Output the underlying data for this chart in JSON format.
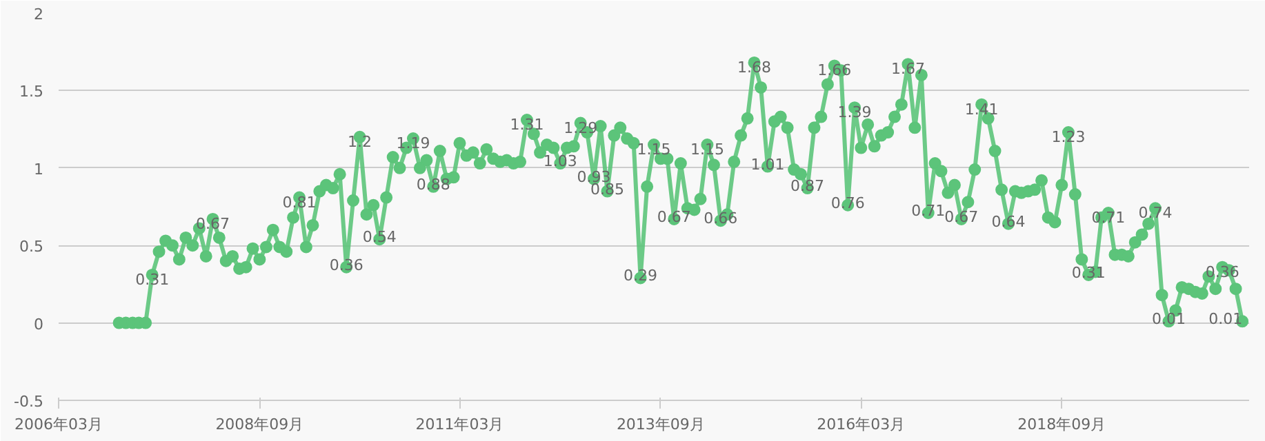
{
  "chart_data": {
    "type": "line",
    "x": [
      "2006-12",
      "2007-01",
      "2007-02",
      "2007-03",
      "2007-04",
      "2007-05",
      "2007-06",
      "2007-07",
      "2007-08",
      "2007-09",
      "2007-10",
      "2007-11",
      "2007-12",
      "2008-01",
      "2008-02",
      "2008-03",
      "2008-04",
      "2008-05",
      "2008-06",
      "2008-07",
      "2008-08",
      "2008-09",
      "2008-10",
      "2008-11",
      "2008-12",
      "2009-01",
      "2009-02",
      "2009-03",
      "2009-04",
      "2009-05",
      "2009-06",
      "2009-07",
      "2009-08",
      "2009-09",
      "2009-10",
      "2009-11",
      "2009-12",
      "2010-01",
      "2010-02",
      "2010-03",
      "2010-04",
      "2010-05",
      "2010-06",
      "2010-07",
      "2010-08",
      "2010-09",
      "2010-10",
      "2010-11",
      "2010-12",
      "2011-01",
      "2011-02",
      "2011-03",
      "2011-04",
      "2011-05",
      "2011-06",
      "2011-07",
      "2011-08",
      "2011-09",
      "2011-10",
      "2011-11",
      "2011-12",
      "2012-01",
      "2012-02",
      "2012-03",
      "2012-04",
      "2012-05",
      "2012-06",
      "2012-07",
      "2012-08",
      "2012-09",
      "2012-10",
      "2012-11",
      "2012-12",
      "2013-01",
      "2013-02",
      "2013-03",
      "2013-04",
      "2013-05",
      "2013-06",
      "2013-07",
      "2013-08",
      "2013-09",
      "2013-10",
      "2013-11",
      "2013-12",
      "2014-01",
      "2014-02",
      "2014-03",
      "2014-04",
      "2014-05",
      "2014-06",
      "2014-07",
      "2014-08",
      "2014-09",
      "2014-10",
      "2014-11",
      "2014-12",
      "2015-01",
      "2015-02",
      "2015-03",
      "2015-04",
      "2015-05",
      "2015-06",
      "2015-07",
      "2015-08",
      "2015-09",
      "2015-10",
      "2015-11",
      "2015-12",
      "2016-01",
      "2016-02",
      "2016-03",
      "2016-04",
      "2016-05",
      "2016-06",
      "2016-07",
      "2016-08",
      "2016-09",
      "2016-10",
      "2016-11",
      "2016-12",
      "2017-01",
      "2017-02",
      "2017-03",
      "2017-04",
      "2017-05",
      "2017-06",
      "2017-07",
      "2017-08",
      "2017-09",
      "2017-10",
      "2017-11",
      "2017-12",
      "2018-01",
      "2018-02",
      "2018-03",
      "2018-04",
      "2018-05",
      "2018-06",
      "2018-07",
      "2018-08",
      "2018-09",
      "2018-10",
      "2018-11",
      "2018-12",
      "2019-01",
      "2019-02",
      "2019-03",
      "2019-04",
      "2019-05",
      "2019-06",
      "2019-07",
      "2019-08",
      "2019-09",
      "2019-10",
      "2019-11",
      "2019-12",
      "2020-01",
      "2020-02",
      "2020-03",
      "2020-04",
      "2020-05",
      "2020-06",
      "2020-07",
      "2020-08",
      "2020-09",
      "2020-10",
      "2020-11",
      "2020-12"
    ],
    "series": [
      {
        "color": "#5cc47a",
        "values": [
          0,
          0,
          0,
          0,
          0,
          0.31,
          0.46,
          0.53,
          0.5,
          0.41,
          0.55,
          0.5,
          0.61,
          0.43,
          0.67,
          0.55,
          0.4,
          0.43,
          0.35,
          0.36,
          0.48,
          0.41,
          0.49,
          0.6,
          0.49,
          0.46,
          0.68,
          0.81,
          0.49,
          0.63,
          0.85,
          0.89,
          0.87,
          0.96,
          0.36,
          0.79,
          1.2,
          0.7,
          0.76,
          0.54,
          0.81,
          1.07,
          1.0,
          1.13,
          1.19,
          1.0,
          1.05,
          0.88,
          1.11,
          0.93,
          0.94,
          1.16,
          1.08,
          1.1,
          1.03,
          1.12,
          1.06,
          1.04,
          1.05,
          1.03,
          1.04,
          1.31,
          1.22,
          1.1,
          1.15,
          1.13,
          1.03,
          1.13,
          1.14,
          1.29,
          1.23,
          0.93,
          1.27,
          0.85,
          1.21,
          1.26,
          1.19,
          1.16,
          0.29,
          0.88,
          1.15,
          1.06,
          1.06,
          0.67,
          1.03,
          0.74,
          0.73,
          0.8,
          1.15,
          1.02,
          0.66,
          0.7,
          1.04,
          1.21,
          1.32,
          1.68,
          1.52,
          1.01,
          1.3,
          1.33,
          1.26,
          0.99,
          0.96,
          0.87,
          1.26,
          1.33,
          1.54,
          1.66,
          1.63,
          0.76,
          1.39,
          1.13,
          1.28,
          1.14,
          1.21,
          1.23,
          1.33,
          1.41,
          1.67,
          1.26,
          1.6,
          0.71,
          1.03,
          0.98,
          0.84,
          0.89,
          0.67,
          0.78,
          0.99,
          1.41,
          1.32,
          1.11,
          0.86,
          0.64,
          0.85,
          0.84,
          0.85,
          0.86,
          0.92,
          0.68,
          0.65,
          0.89,
          1.23,
          0.83,
          0.41,
          0.31,
          0.33,
          0.68,
          0.71,
          0.44,
          0.44,
          0.43,
          0.52,
          0.57,
          0.64,
          0.74,
          0.18,
          0.01,
          0.08,
          0.23,
          0.22,
          0.2,
          0.19,
          0.3,
          0.22,
          0.36,
          0.34,
          0.22,
          0.01
        ],
        "value_labels": [
          null,
          null,
          null,
          null,
          null,
          "0.31",
          null,
          null,
          null,
          null,
          null,
          null,
          null,
          null,
          "0.67",
          null,
          null,
          null,
          null,
          null,
          null,
          null,
          null,
          null,
          null,
          null,
          null,
          "0.81",
          null,
          null,
          null,
          null,
          null,
          null,
          "0.36",
          null,
          "1.2",
          null,
          null,
          "0.54",
          null,
          null,
          null,
          null,
          "1.19",
          null,
          null,
          "0.88",
          null,
          null,
          null,
          null,
          null,
          null,
          null,
          null,
          null,
          null,
          null,
          null,
          null,
          "1.31",
          null,
          null,
          null,
          null,
          "1.03",
          null,
          null,
          "1.29",
          null,
          "0.93",
          null,
          "0.85",
          null,
          null,
          null,
          null,
          "0.29",
          null,
          "1.15",
          null,
          null,
          "0.67",
          null,
          null,
          null,
          null,
          "1.15",
          null,
          "0.66",
          null,
          null,
          null,
          null,
          "1.68",
          null,
          "1.01",
          null,
          null,
          null,
          null,
          null,
          "0.87",
          null,
          null,
          null,
          "1.66",
          null,
          "0.76",
          "1.39",
          null,
          null,
          null,
          null,
          null,
          null,
          null,
          "1.67",
          null,
          null,
          "0.71",
          null,
          null,
          null,
          null,
          "0.67",
          null,
          null,
          "1.41",
          null,
          null,
          null,
          "0.64",
          null,
          null,
          null,
          null,
          null,
          null,
          null,
          null,
          "1.23",
          null,
          null,
          "0.31",
          null,
          null,
          "0.71",
          null,
          null,
          null,
          null,
          null,
          null,
          "0.74",
          null,
          "0.01",
          null,
          null,
          null,
          null,
          null,
          null,
          null,
          "0.36",
          null,
          null,
          "0.01"
        ]
      }
    ],
    "xlim": [
      "2006-03",
      "2021-01"
    ],
    "xticks": [
      {
        "value": "2006-03",
        "label": "2006年03月"
      },
      {
        "value": "2008-09",
        "label": "2008年09月"
      },
      {
        "value": "2011-03",
        "label": "2011年03月"
      },
      {
        "value": "2013-09",
        "label": "2013年09月"
      },
      {
        "value": "2016-03",
        "label": "2016年03月"
      },
      {
        "value": "2018-09",
        "label": "2018年09月"
      }
    ],
    "ylim": [
      -0.5,
      2
    ],
    "yticks": [
      -0.5,
      0,
      0.5,
      1,
      1.5,
      2
    ],
    "grid": "y",
    "marker": "circle",
    "line_style": "solid"
  }
}
